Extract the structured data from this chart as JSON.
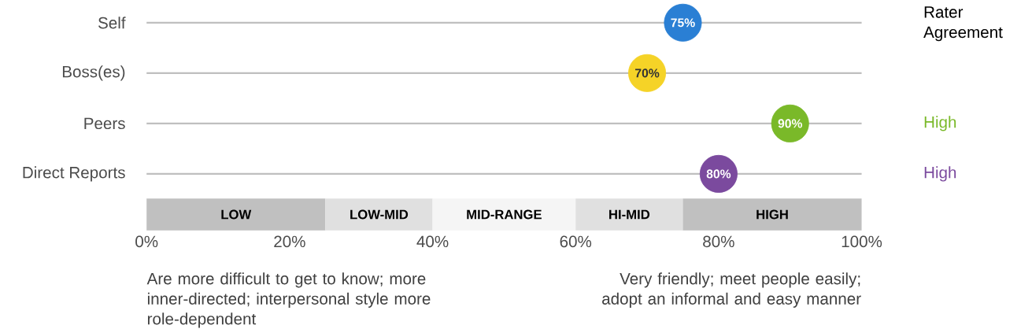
{
  "chart_data": {
    "type": "scatter",
    "orientation": "horizontal",
    "categories": [
      "Self",
      "Boss(es)",
      "Peers",
      "Direct Reports"
    ],
    "values": [
      75,
      70,
      90,
      80
    ],
    "colors": [
      "#2a7fd4",
      "#f5d327",
      "#7ab929",
      "#7b4a9e"
    ],
    "value_labels": [
      "75%",
      "70%",
      "90%",
      "80%"
    ],
    "xlim": [
      0,
      100
    ],
    "xticks": [
      {
        "value": 0,
        "label": "0%"
      },
      {
        "value": 20,
        "label": "20%"
      },
      {
        "value": 40,
        "label": "40%"
      },
      {
        "value": 60,
        "label": "60%"
      },
      {
        "value": 80,
        "label": "80%"
      },
      {
        "value": 100,
        "label": "100%"
      }
    ],
    "grid": "y",
    "bands": [
      {
        "axis": "x",
        "from": 0,
        "to": 25,
        "label": "LOW",
        "color": "#c0c0c0"
      },
      {
        "axis": "x",
        "from": 25,
        "to": 40,
        "label": "LOW-MID",
        "color": "#e0e0e0"
      },
      {
        "axis": "x",
        "from": 40,
        "to": 60,
        "label": "MID-RANGE",
        "color": "#f5f5f5"
      },
      {
        "axis": "x",
        "from": 60,
        "to": 75,
        "label": "HI-MID",
        "color": "#e0e0e0"
      },
      {
        "axis": "x",
        "from": 75,
        "to": 100,
        "label": "HIGH",
        "color": "#c0c0c0"
      }
    ],
    "y2label": "Rater Agreement",
    "y2_categories": [
      null,
      null,
      "High",
      "High"
    ],
    "annotations": [
      "Are more difficult to get to know; more inner-directed; interpersonal style more role-dependent",
      "Very friendly; meet people easily; adopt an informal and easy manner"
    ]
  }
}
